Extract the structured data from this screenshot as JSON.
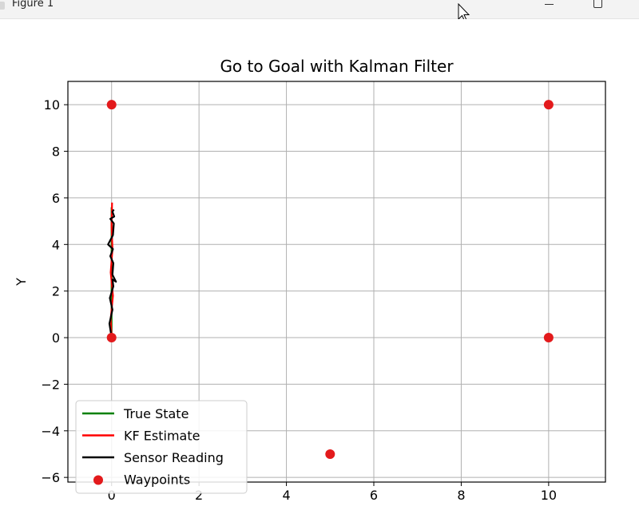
{
  "window": {
    "title": "Figure 1"
  },
  "chart_data": {
    "type": "line",
    "title": "Go to Goal with Kalman Filter",
    "xlabel": "",
    "ylabel": "Y",
    "xlim": [
      -1,
      11.3
    ],
    "ylim": [
      -6.2,
      11
    ],
    "xticks": [
      0,
      2,
      4,
      6,
      8,
      10
    ],
    "yticks": [
      -6,
      -4,
      -2,
      0,
      2,
      4,
      6,
      8,
      10
    ],
    "xtick_labels": [
      "0",
      "2",
      "4",
      "6",
      "8",
      "10"
    ],
    "ytick_labels": [
      "−6",
      "−4",
      "−2",
      "0",
      "2",
      "4",
      "6",
      "8",
      "10"
    ],
    "grid": true,
    "legend_position": "lower-left",
    "series": [
      {
        "name": "True State",
        "color": "#008000",
        "kind": "line",
        "points": [
          [
            0,
            0
          ],
          [
            0,
            5.6
          ]
        ]
      },
      {
        "name": "KF Estimate",
        "color": "#ff0000",
        "kind": "line",
        "points": [
          [
            0,
            0
          ],
          [
            -0.02,
            0.8
          ],
          [
            0.03,
            1.8
          ],
          [
            -0.02,
            2.8
          ],
          [
            0.02,
            3.8
          ],
          [
            0,
            4.8
          ],
          [
            0.01,
            5.8
          ]
        ]
      },
      {
        "name": "Sensor Reading",
        "color": "#000000",
        "kind": "line",
        "points": [
          [
            0,
            0
          ],
          [
            -0.05,
            0.6
          ],
          [
            0.02,
            1.2
          ],
          [
            -0.04,
            1.7
          ],
          [
            0.04,
            2.2
          ],
          [
            0.02,
            2.5
          ],
          [
            0.1,
            2.4
          ],
          [
            0.02,
            2.7
          ],
          [
            0.04,
            3.2
          ],
          [
            -0.03,
            3.5
          ],
          [
            0.03,
            3.8
          ],
          [
            -0.08,
            4.0
          ],
          [
            0.03,
            4.4
          ],
          [
            0.05,
            4.9
          ],
          [
            -0.03,
            5.1
          ],
          [
            0.06,
            5.2
          ],
          [
            0.02,
            5.4
          ],
          [
            0.05,
            5.5
          ]
        ]
      },
      {
        "name": "Waypoints",
        "color": "#e31a1c",
        "kind": "scatter",
        "points": [
          [
            0,
            0
          ],
          [
            0,
            10
          ],
          [
            10,
            10
          ],
          [
            10,
            0
          ],
          [
            5,
            -5
          ]
        ]
      }
    ]
  }
}
